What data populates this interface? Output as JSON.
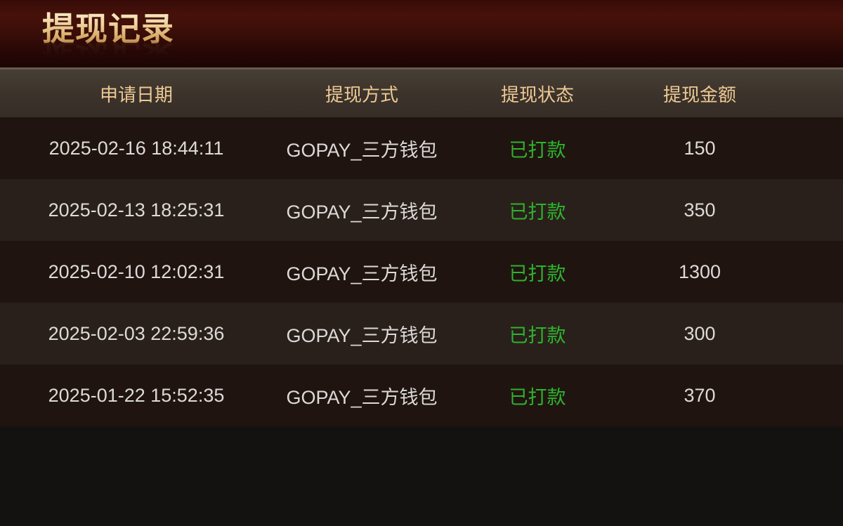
{
  "page": {
    "title": "提现记录"
  },
  "table": {
    "columns": [
      {
        "label": "申请日期"
      },
      {
        "label": "提现方式"
      },
      {
        "label": "提现状态"
      },
      {
        "label": "提现金额"
      }
    ],
    "rows": [
      {
        "date": "2025-02-16 18:44:11",
        "method": "GOPAY_三方钱包",
        "status": "已打款",
        "amount": "150"
      },
      {
        "date": "2025-02-13 18:25:31",
        "method": "GOPAY_三方钱包",
        "status": "已打款",
        "amount": "350"
      },
      {
        "date": "2025-02-10 12:02:31",
        "method": "GOPAY_三方钱包",
        "status": "已打款",
        "amount": "1300"
      },
      {
        "date": "2025-02-03 22:59:36",
        "method": "GOPAY_三方钱包",
        "status": "已打款",
        "amount": "300"
      },
      {
        "date": "2025-01-22 15:52:35",
        "method": "GOPAY_三方钱包",
        "status": "已打款",
        "amount": "370"
      }
    ]
  },
  "colors": {
    "status_paid_green": "#2db32d",
    "header_text_gold": "#eec894",
    "title_gold_gradient_top": "#f9eecb",
    "title_gold_gradient_bottom": "#b28043",
    "banner_maroon": "#43100a",
    "row_dark": "#201410",
    "row_light": "#2a201b"
  }
}
